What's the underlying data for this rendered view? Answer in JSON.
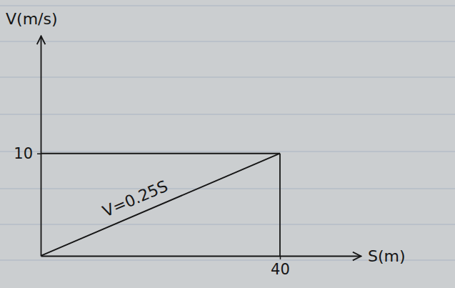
{
  "chart_data": {
    "type": "line",
    "x_label": "S(m)",
    "y_label": "V(m/s)",
    "x": [
      0,
      40
    ],
    "values": [
      0,
      10
    ],
    "color": "#151515",
    "xlim": [
      0,
      53.5
    ],
    "ylim": [
      0,
      21.5
    ],
    "xticks": [
      40
    ],
    "yticks": [
      10
    ],
    "annotation": "V=0.25S",
    "grid": false
  }
}
